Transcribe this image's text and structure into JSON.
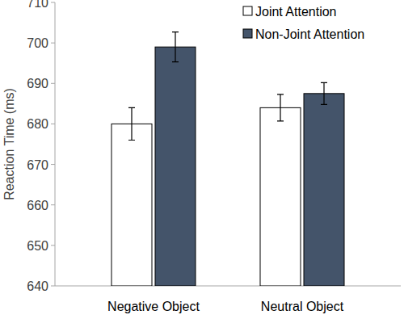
{
  "chart_data": {
    "type": "bar",
    "y_label": "Reaction Time (ms)",
    "categories": [
      "Negative Object",
      "Neutral Object"
    ],
    "series": [
      {
        "name": "Joint Attention",
        "color": "#ffffff",
        "values": [
          680,
          684
        ],
        "errors": [
          4,
          3.3
        ]
      },
      {
        "name": "Non-Joint Attention",
        "color": "#44546a",
        "values": [
          699,
          687.5
        ],
        "errors": [
          3.7,
          2.7
        ]
      }
    ],
    "ylim": [
      640,
      710
    ],
    "yticks": [
      640,
      650,
      660,
      670,
      680,
      690,
      700,
      710
    ],
    "grid": false,
    "legend": "top-right"
  }
}
